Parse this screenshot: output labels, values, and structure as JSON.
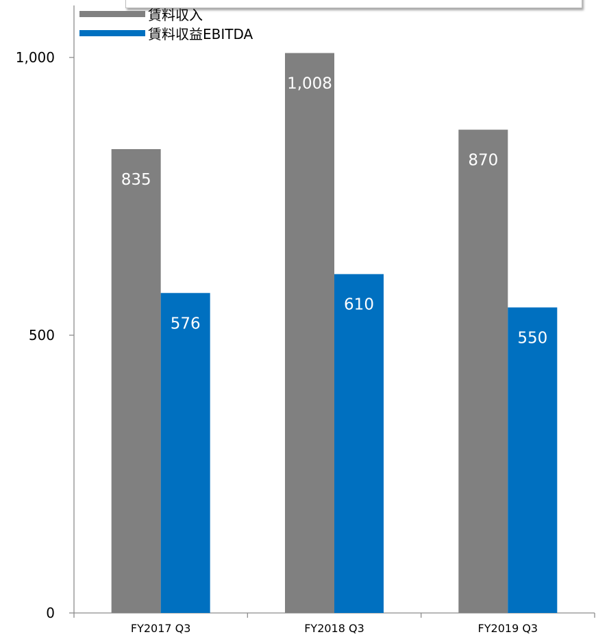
{
  "chart_data": {
    "type": "bar",
    "categories": [
      "FY2017 Q3",
      "FY2018 Q3",
      "FY2019 Q3"
    ],
    "series": [
      {
        "name": "賃料収入",
        "values": [
          835,
          1008,
          870
        ],
        "color": "#808080"
      },
      {
        "name": "賃料収益EBITDA",
        "values": [
          576,
          610,
          550
        ],
        "color": "#0070c0"
      }
    ],
    "data_labels": [
      [
        "835",
        "1,008",
        "870"
      ],
      [
        "576",
        "610",
        "550"
      ]
    ],
    "y_ticks": [
      0,
      500,
      1000
    ],
    "y_tick_labels": [
      "0",
      "500",
      "1,000"
    ],
    "ylim": [
      0,
      1000
    ],
    "grid": false,
    "legend_position": "top-left"
  }
}
